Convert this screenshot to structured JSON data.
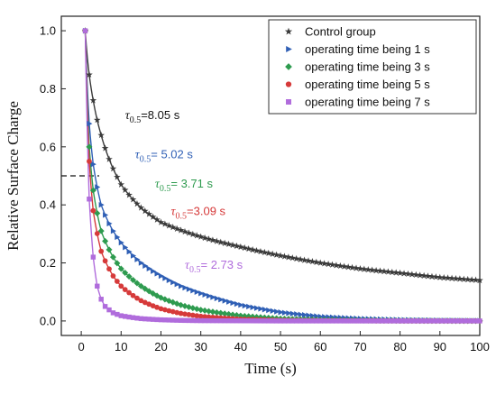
{
  "chart_data": {
    "type": "scatter",
    "xlabel": "Time (s)",
    "ylabel": "Relative Surface Charge",
    "xlim": [
      -5,
      100
    ],
    "ylim": [
      -0.05,
      1.05
    ],
    "xticks": [
      0,
      10,
      20,
      30,
      40,
      50,
      60,
      70,
      80,
      90,
      100
    ],
    "yticks": [
      0.0,
      0.2,
      0.4,
      0.6,
      0.8,
      1.0
    ],
    "xtick_labels": [
      "0",
      "10",
      "20",
      "30",
      "40",
      "50",
      "60",
      "70",
      "80",
      "90",
      "100"
    ],
    "ytick_labels": [
      "0.0",
      "0.2",
      "0.4",
      "0.6",
      "0.8",
      "1.0"
    ],
    "grid": false,
    "legend_position": "top-right",
    "reference_line": {
      "y": 0.5,
      "x_end": 4.5,
      "style": "dashed"
    },
    "series": [
      {
        "name": "Control group",
        "marker": "star",
        "color": "#3a3a3a",
        "tau": 8.05,
        "x": [
          1,
          3,
          5,
          10,
          15,
          20,
          30,
          40,
          50,
          60,
          70,
          80,
          90,
          100
        ],
        "y": [
          1.0,
          0.76,
          0.64,
          0.47,
          0.39,
          0.34,
          0.29,
          0.255,
          0.225,
          0.2,
          0.18,
          0.165,
          0.15,
          0.14
        ]
      },
      {
        "name": "operating time being 1 s",
        "marker": "triangle-right",
        "color": "#2f5fb5",
        "tau": 5.02,
        "x": [
          1,
          2,
          3,
          5,
          8,
          10,
          15,
          20,
          25,
          30,
          40,
          50,
          60,
          70,
          80,
          90,
          100
        ],
        "y": [
          1.0,
          0.68,
          0.54,
          0.4,
          0.31,
          0.27,
          0.2,
          0.155,
          0.12,
          0.095,
          0.055,
          0.03,
          0.015,
          0.008,
          0.004,
          0.002,
          0.001
        ]
      },
      {
        "name": "operating time being 3 s",
        "marker": "diamond",
        "color": "#2e9b4f",
        "tau": 3.71,
        "x": [
          1,
          2,
          3,
          5,
          8,
          10,
          15,
          20,
          25,
          30,
          40,
          50,
          60,
          70,
          80,
          90,
          100
        ],
        "y": [
          1.0,
          0.6,
          0.45,
          0.31,
          0.22,
          0.18,
          0.12,
          0.08,
          0.055,
          0.038,
          0.018,
          0.008,
          0.004,
          0.002,
          0.001,
          0.0005,
          0.0
        ]
      },
      {
        "name": "operating time being 5 s",
        "marker": "circle",
        "color": "#d63a3a",
        "tau": 3.09,
        "x": [
          1,
          2,
          3,
          5,
          8,
          10,
          15,
          20,
          25,
          30,
          40,
          50,
          60,
          70,
          80,
          90,
          100
        ],
        "y": [
          1.0,
          0.55,
          0.38,
          0.24,
          0.155,
          0.12,
          0.07,
          0.042,
          0.026,
          0.016,
          0.006,
          0.002,
          0.001,
          0.0005,
          0.0,
          0.0,
          0.0
        ]
      },
      {
        "name": "operating time being 7 s",
        "marker": "square",
        "color": "#b06cdc",
        "tau": 2.73,
        "x": [
          1,
          2,
          3,
          4,
          5,
          6,
          8,
          10,
          15,
          20,
          25,
          30,
          40,
          50,
          60,
          70,
          80,
          90,
          100
        ],
        "y": [
          1.0,
          0.42,
          0.22,
          0.12,
          0.075,
          0.05,
          0.028,
          0.018,
          0.008,
          0.004,
          0.002,
          0.001,
          0.0005,
          0.0,
          0.0,
          0.0,
          0.0,
          0.0,
          0.0
        ]
      }
    ],
    "annotations": [
      {
        "tau_symbol": "τ",
        "tau_sub": "0.5",
        "text": "=8.05 s",
        "color": "#111111",
        "x": 11.0,
        "y": 0.695
      },
      {
        "tau_symbol": "τ",
        "tau_sub": "0.5",
        "text": "= 5.02 s",
        "color": "#2f5fb5",
        "x": 13.5,
        "y": 0.56
      },
      {
        "tau_symbol": "τ",
        "tau_sub": "0.5",
        "text": "= 3.71 s",
        "color": "#2e9b4f",
        "x": 18.5,
        "y": 0.46
      },
      {
        "tau_symbol": "τ",
        "tau_sub": "0.5",
        "text": "=3.09 s",
        "color": "#d63a3a",
        "x": 22.5,
        "y": 0.365
      },
      {
        "tau_symbol": "τ",
        "tau_sub": "0.5",
        "text": "= 2.73 s",
        "color": "#b06cdc",
        "x": 26.0,
        "y": 0.18
      }
    ]
  }
}
